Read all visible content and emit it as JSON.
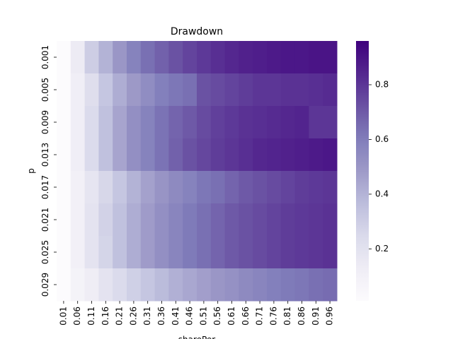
{
  "chart_data": {
    "type": "heatmap",
    "title": "Drawdown",
    "xlabel": "sharePer",
    "ylabel": "p",
    "x_tick_labels": [
      "0.01",
      "0.06",
      "0.11",
      "0.16",
      "0.21",
      "0.26",
      "0.31",
      "0.36",
      "0.41",
      "0.46",
      "0.51",
      "0.56",
      "0.61",
      "0.66",
      "0.71",
      "0.76",
      "0.81",
      "0.86",
      "0.91",
      "0.96"
    ],
    "y_tick_labels": [
      "0.001",
      "0.005",
      "0.009",
      "0.013",
      "0.017",
      "0.021",
      "0.025",
      "0.029"
    ],
    "colorbar_ticks": [
      0.2,
      0.4,
      0.6,
      0.8
    ],
    "colorbar_range": [
      0.01,
      0.96
    ],
    "colormap": "Purples",
    "values": [
      [
        0.01,
        0.14,
        0.3,
        0.4,
        0.5,
        0.58,
        0.64,
        0.68,
        0.72,
        0.76,
        0.79,
        0.82,
        0.84,
        0.86,
        0.87,
        0.88,
        0.89,
        0.89,
        0.9,
        0.9
      ],
      [
        0.01,
        0.12,
        0.22,
        0.33,
        0.42,
        0.49,
        0.54,
        0.59,
        0.62,
        0.64,
        0.72,
        0.74,
        0.76,
        0.78,
        0.8,
        0.8,
        0.81,
        0.81,
        0.82,
        0.83
      ],
      [
        0.01,
        0.12,
        0.24,
        0.35,
        0.45,
        0.53,
        0.58,
        0.63,
        0.67,
        0.7,
        0.74,
        0.77,
        0.79,
        0.81,
        0.82,
        0.83,
        0.84,
        0.85,
        0.8,
        0.8
      ],
      [
        0.01,
        0.12,
        0.24,
        0.35,
        0.45,
        0.53,
        0.58,
        0.63,
        0.68,
        0.72,
        0.75,
        0.78,
        0.8,
        0.82,
        0.84,
        0.85,
        0.86,
        0.87,
        0.88,
        0.89
      ],
      [
        0.01,
        0.1,
        0.18,
        0.26,
        0.33,
        0.4,
        0.46,
        0.51,
        0.55,
        0.58,
        0.62,
        0.64,
        0.67,
        0.7,
        0.72,
        0.74,
        0.76,
        0.78,
        0.79,
        0.8
      ],
      [
        0.01,
        0.1,
        0.19,
        0.28,
        0.35,
        0.42,
        0.48,
        0.53,
        0.57,
        0.61,
        0.64,
        0.67,
        0.7,
        0.72,
        0.74,
        0.76,
        0.78,
        0.79,
        0.8,
        0.81
      ],
      [
        0.01,
        0.1,
        0.19,
        0.27,
        0.35,
        0.42,
        0.48,
        0.53,
        0.57,
        0.61,
        0.64,
        0.67,
        0.7,
        0.72,
        0.74,
        0.76,
        0.78,
        0.79,
        0.8,
        0.81
      ],
      [
        0.01,
        0.08,
        0.13,
        0.19,
        0.24,
        0.29,
        0.33,
        0.37,
        0.41,
        0.44,
        0.47,
        0.5,
        0.52,
        0.55,
        0.57,
        0.59,
        0.61,
        0.62,
        0.64,
        0.65
      ]
    ]
  }
}
